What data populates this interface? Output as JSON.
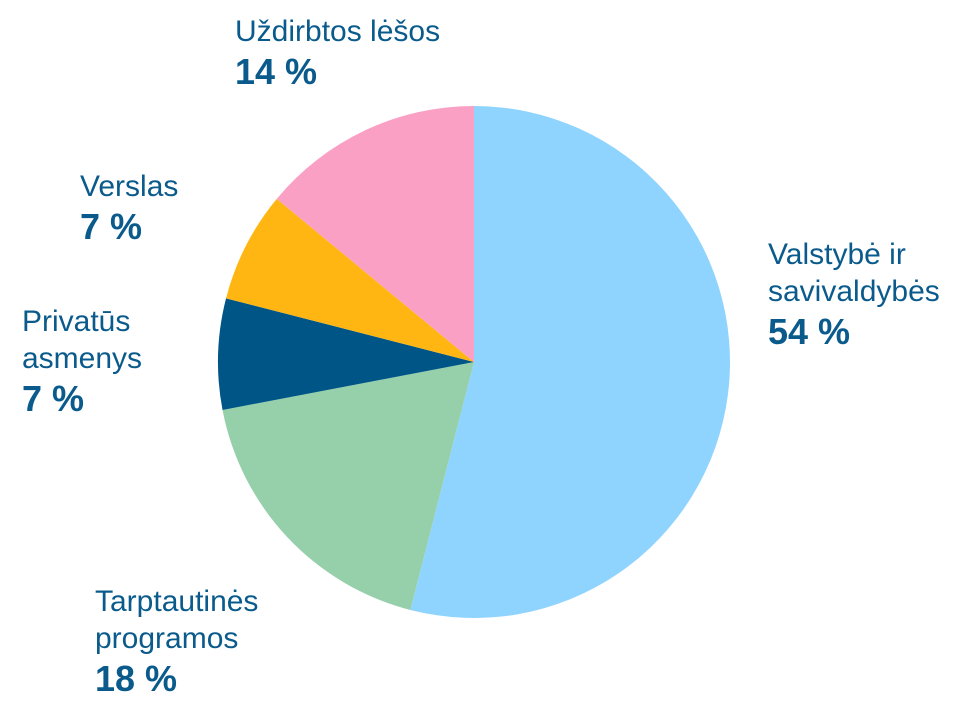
{
  "chart_data": {
    "type": "pie",
    "categories": [
      "Valstybė ir savivaldybės",
      "Tarptautinės programos",
      "Privatūs asmenys",
      "Verslas",
      "Uždirbtos lėšos"
    ],
    "values": [
      54,
      18,
      7,
      7,
      14
    ],
    "value_labels": [
      "54 %",
      "18 %",
      "7 %",
      "7 %",
      "14 %"
    ],
    "colors": [
      "#8fd4fe",
      "#95d0aa",
      "#005587",
      "#ffb612",
      "#f9a0c4"
    ]
  }
}
